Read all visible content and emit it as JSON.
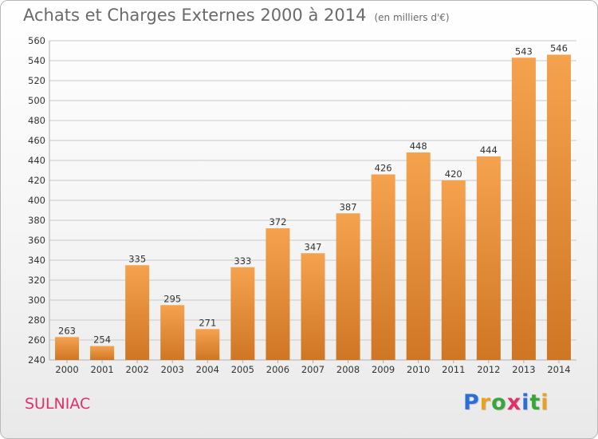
{
  "title": "Achats et Charges Externes 2000 à 2014",
  "subtitle": "(en milliers d'€)",
  "location": "SULNIAC",
  "brand": {
    "letters": [
      "P",
      "r",
      "o",
      "x",
      "i",
      "t",
      "i"
    ],
    "colors": [
      "#2b6fd6",
      "#e8a120",
      "#3aa63a",
      "#e0306b",
      "#2b6fd6",
      "#3aa63a",
      "#e8a120"
    ]
  },
  "colors": {
    "bar_top": "#f5a24f",
    "bar_bottom": "#cf7624",
    "grid": "#c9c9c9",
    "axis_text": "#333333",
    "title": "#6a6a6a",
    "location": "#e0306b"
  },
  "chart_data": {
    "type": "bar",
    "categories": [
      "2000",
      "2001",
      "2002",
      "2003",
      "2004",
      "2005",
      "2006",
      "2007",
      "2008",
      "2009",
      "2010",
      "2011",
      "2012",
      "2013",
      "2014"
    ],
    "values": [
      263,
      254,
      335,
      295,
      271,
      333,
      372,
      347,
      387,
      426,
      448,
      420,
      444,
      543,
      546
    ],
    "data_labels": [
      "263",
      "254",
      "335",
      "295",
      "271",
      "333",
      "372",
      "347",
      "387",
      "426",
      "448",
      "420",
      "444",
      "543",
      "546"
    ],
    "ylim": [
      240,
      560
    ],
    "yticks": [
      240,
      260,
      280,
      300,
      320,
      340,
      360,
      380,
      400,
      420,
      440,
      460,
      480,
      500,
      520,
      540,
      560
    ],
    "grid": true,
    "legend": "none"
  }
}
